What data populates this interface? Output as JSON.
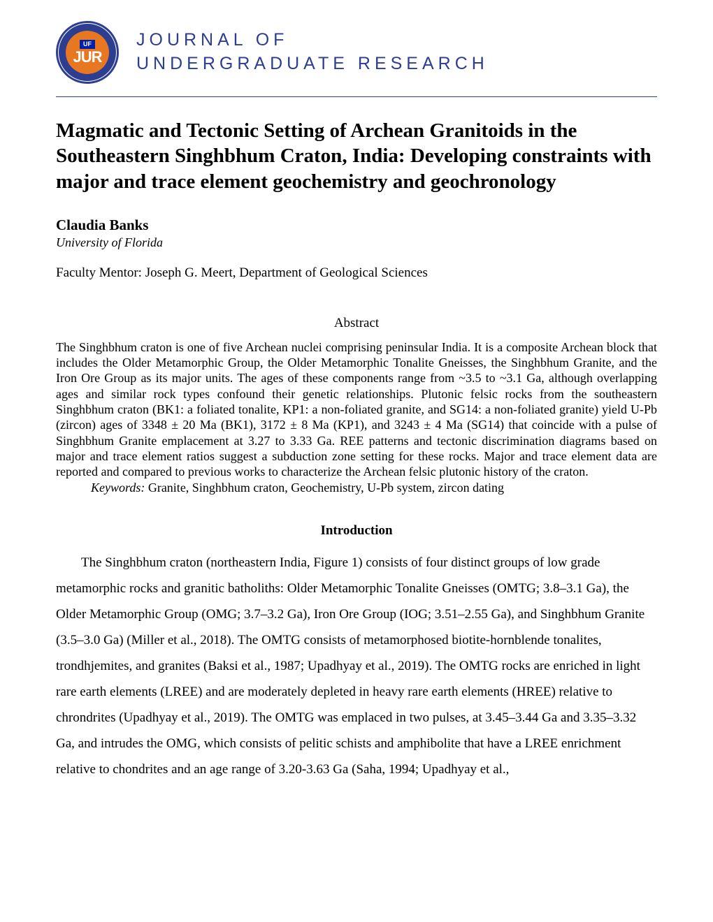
{
  "header": {
    "logo": {
      "uf_text": "UF",
      "jur_text": "JUR",
      "outer_color": "#2d3e91",
      "inner_color": "#e87722",
      "uf_bg_color": "#0021a5"
    },
    "journal_line1": "JOURNAL OF",
    "journal_line2": "UNDERGRADUATE RESEARCH",
    "journal_color": "#2d3e91"
  },
  "divider_color": "#2d3e91",
  "paper": {
    "title": "Magmatic and Tectonic Setting of Archean Granitoids in the Southeastern Singhbhum Craton, India: Developing constraints with major and trace element geochemistry and geochronology",
    "author": "Claudia Banks",
    "affiliation": "University of Florida",
    "mentor": "Faculty Mentor: Joseph G. Meert, Department of Geological Sciences"
  },
  "abstract": {
    "heading": "Abstract",
    "text": "The Singhbhum craton is one of five Archean nuclei comprising peninsular India. It is a composite Archean block that includes the Older Metamorphic Group, the Older Metamorphic Tonalite Gneisses, the Singhbhum Granite, and the Iron Ore Group as its major units. The ages of these components range from ~3.5 to ~3.1 Ga, although overlapping ages and similar rock types confound their genetic relationships. Plutonic felsic rocks from the southeastern Singhbhum craton (BK1: a foliated tonalite, KP1: a non-foliated granite, and SG14: a non-foliated granite) yield U-Pb (zircon) ages of 3348 ± 20 Ma (BK1), 3172 ± 8 Ma (KP1), and  3243 ± 4 Ma (SG14) that coincide with a pulse of Singhbhum Granite emplacement at 3.27 to 3.33 Ga. REE patterns and tectonic discrimination diagrams based on major and trace element ratios suggest a subduction zone setting for these rocks. Major and trace element data are reported and compared to previous works to characterize the Archean felsic plutonic history of the craton.",
    "keywords_label": "Keywords:",
    "keywords_text": " Granite, Singhbhum craton, Geochemistry, U-Pb system, zircon dating"
  },
  "introduction": {
    "heading": "Introduction",
    "text": "The Singhbhum craton (northeastern India, Figure 1) consists of four distinct groups of low grade metamorphic rocks and granitic batholiths: Older Metamorphic Tonalite Gneisses (OMTG; 3.8–3.1 Ga), the Older Metamorphic Group (OMG; 3.7–3.2 Ga), Iron Ore Group (IOG; 3.51–2.55 Ga), and Singhbhum Granite (3.5–3.0 Ga) (Miller et al., 2018). The OMTG consists of metamorphosed biotite-hornblende tonalites, trondhjemites, and granites (Baksi et al., 1987; Upadhyay et al., 2019). The OMTG rocks are enriched in light rare earth elements (LREE) and are moderately depleted in heavy rare earth elements (HREE) relative to chrondrites (Upadhyay et al., 2019). The OMTG was emplaced in two pulses, at 3.45–3.44 Ga and 3.35–3.32 Ga, and intrudes the OMG, which consists of pelitic schists and amphibolite that have a LREE enrichment relative to chondrites and an age range of 3.20-3.63 Ga (Saha, 1994; Upadhyay et al.,"
  },
  "colors": {
    "background": "#ffffff",
    "text": "#000000"
  },
  "typography": {
    "body_font": "Times New Roman",
    "header_font": "Arial",
    "title_fontsize": 29,
    "author_fontsize": 21,
    "body_fontsize": 19,
    "abstract_fontsize": 18
  }
}
